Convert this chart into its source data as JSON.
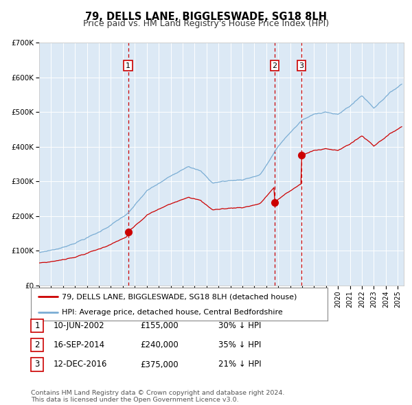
{
  "title": "79, DELLS LANE, BIGGLESWADE, SG18 8LH",
  "subtitle": "Price paid vs. HM Land Registry's House Price Index (HPI)",
  "ylim": [
    0,
    700000
  ],
  "yticks": [
    0,
    100000,
    200000,
    300000,
    400000,
    500000,
    600000,
    700000
  ],
  "ytick_labels": [
    "£0",
    "£100K",
    "£200K",
    "£300K",
    "£400K",
    "£500K",
    "£600K",
    "£700K"
  ],
  "xlim_start": 1995.0,
  "xlim_end": 2025.5,
  "background_color": "#ffffff",
  "plot_bg_color": "#dce9f5",
  "grid_color": "#ffffff",
  "red_line_color": "#cc0000",
  "blue_line_color": "#7aadd4",
  "sale_points": [
    {
      "year": 2002.44,
      "value": 155000,
      "label": "1"
    },
    {
      "year": 2014.71,
      "value": 240000,
      "label": "2"
    },
    {
      "year": 2016.95,
      "value": 375000,
      "label": "3"
    }
  ],
  "vline_years": [
    2002.44,
    2014.71,
    2016.95
  ],
  "legend_red_label": "79, DELLS LANE, BIGGLESWADE, SG18 8LH (detached house)",
  "legend_blue_label": "HPI: Average price, detached house, Central Bedfordshire",
  "table_rows": [
    {
      "num": "1",
      "date": "10-JUN-2002",
      "price": "£155,000",
      "hpi": "30% ↓ HPI"
    },
    {
      "num": "2",
      "date": "16-SEP-2014",
      "price": "£240,000",
      "hpi": "35% ↓ HPI"
    },
    {
      "num": "3",
      "date": "12-DEC-2016",
      "price": "£375,000",
      "hpi": "21% ↓ HPI"
    }
  ],
  "footnote": "Contains HM Land Registry data © Crown copyright and database right 2024.\nThis data is licensed under the Open Government Licence v3.0.",
  "title_fontsize": 10.5,
  "subtitle_fontsize": 9,
  "tick_fontsize": 7.5,
  "legend_fontsize": 8,
  "table_fontsize": 8.5,
  "footnote_fontsize": 6.8
}
